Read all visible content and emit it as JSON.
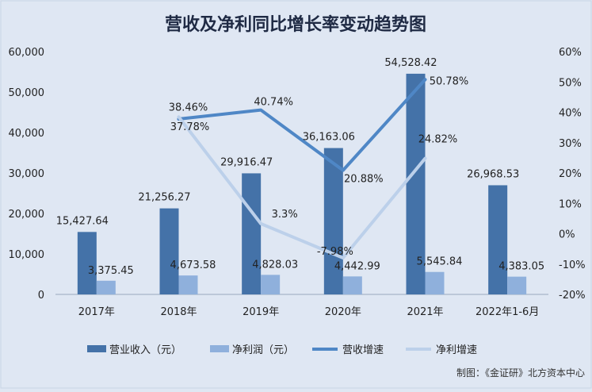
{
  "chart_data": {
    "type": "bar",
    "title": "营收及净利同比增长率变动趋势图",
    "categories": [
      "2017年",
      "2018年",
      "2019年",
      "2020年",
      "2021年",
      "2022年1-6月"
    ],
    "bar_series": [
      {
        "name": "营业收入（元）",
        "values": [
          15427.64,
          21256.27,
          29916.47,
          36163.06,
          54528.42,
          26968.53
        ],
        "labels": [
          "15,427.64",
          "21,256.27",
          "29,916.47",
          "36,163.06",
          "54,528.42",
          "26,968.53"
        ],
        "color": "#4472a8"
      },
      {
        "name": "净利润（元）",
        "values": [
          3375.45,
          4673.58,
          4828.03,
          4442.99,
          5545.84,
          4383.05
        ],
        "labels": [
          "3,375.45",
          "4,673.58",
          "4,828.03",
          "4,442.99",
          "5,545.84",
          "4,383.05"
        ],
        "color": "#8fb0dc"
      }
    ],
    "line_series": [
      {
        "name": "营收增速",
        "values": [
          null,
          37.78,
          40.74,
          20.88,
          50.78,
          null
        ],
        "labels": [
          null,
          "37.78%",
          "40.74%",
          "20.88%",
          "50.78%",
          null
        ],
        "color": "#4f87c6"
      },
      {
        "name": "净利增速",
        "values": [
          null,
          38.46,
          3.3,
          -7.98,
          24.82,
          null
        ],
        "labels": [
          null,
          "38.46%",
          "3.3%",
          "-7.98%",
          "24.82%",
          null
        ],
        "color": "#bcd0ea"
      }
    ],
    "y_left": {
      "ylim": [
        0,
        60000
      ],
      "ticks": [
        "0",
        "10,000",
        "20,000",
        "30,000",
        "40,000",
        "50,000",
        "60,000"
      ]
    },
    "y_right": {
      "ylim": [
        -20,
        60
      ],
      "ticks": [
        "-20%",
        "-10%",
        "0%",
        "10%",
        "20%",
        "30%",
        "40%",
        "50%",
        "60%"
      ]
    },
    "grid": false,
    "legend": "bottom"
  },
  "footer": {
    "credit": "制图：《金证研》北方资本中心"
  }
}
